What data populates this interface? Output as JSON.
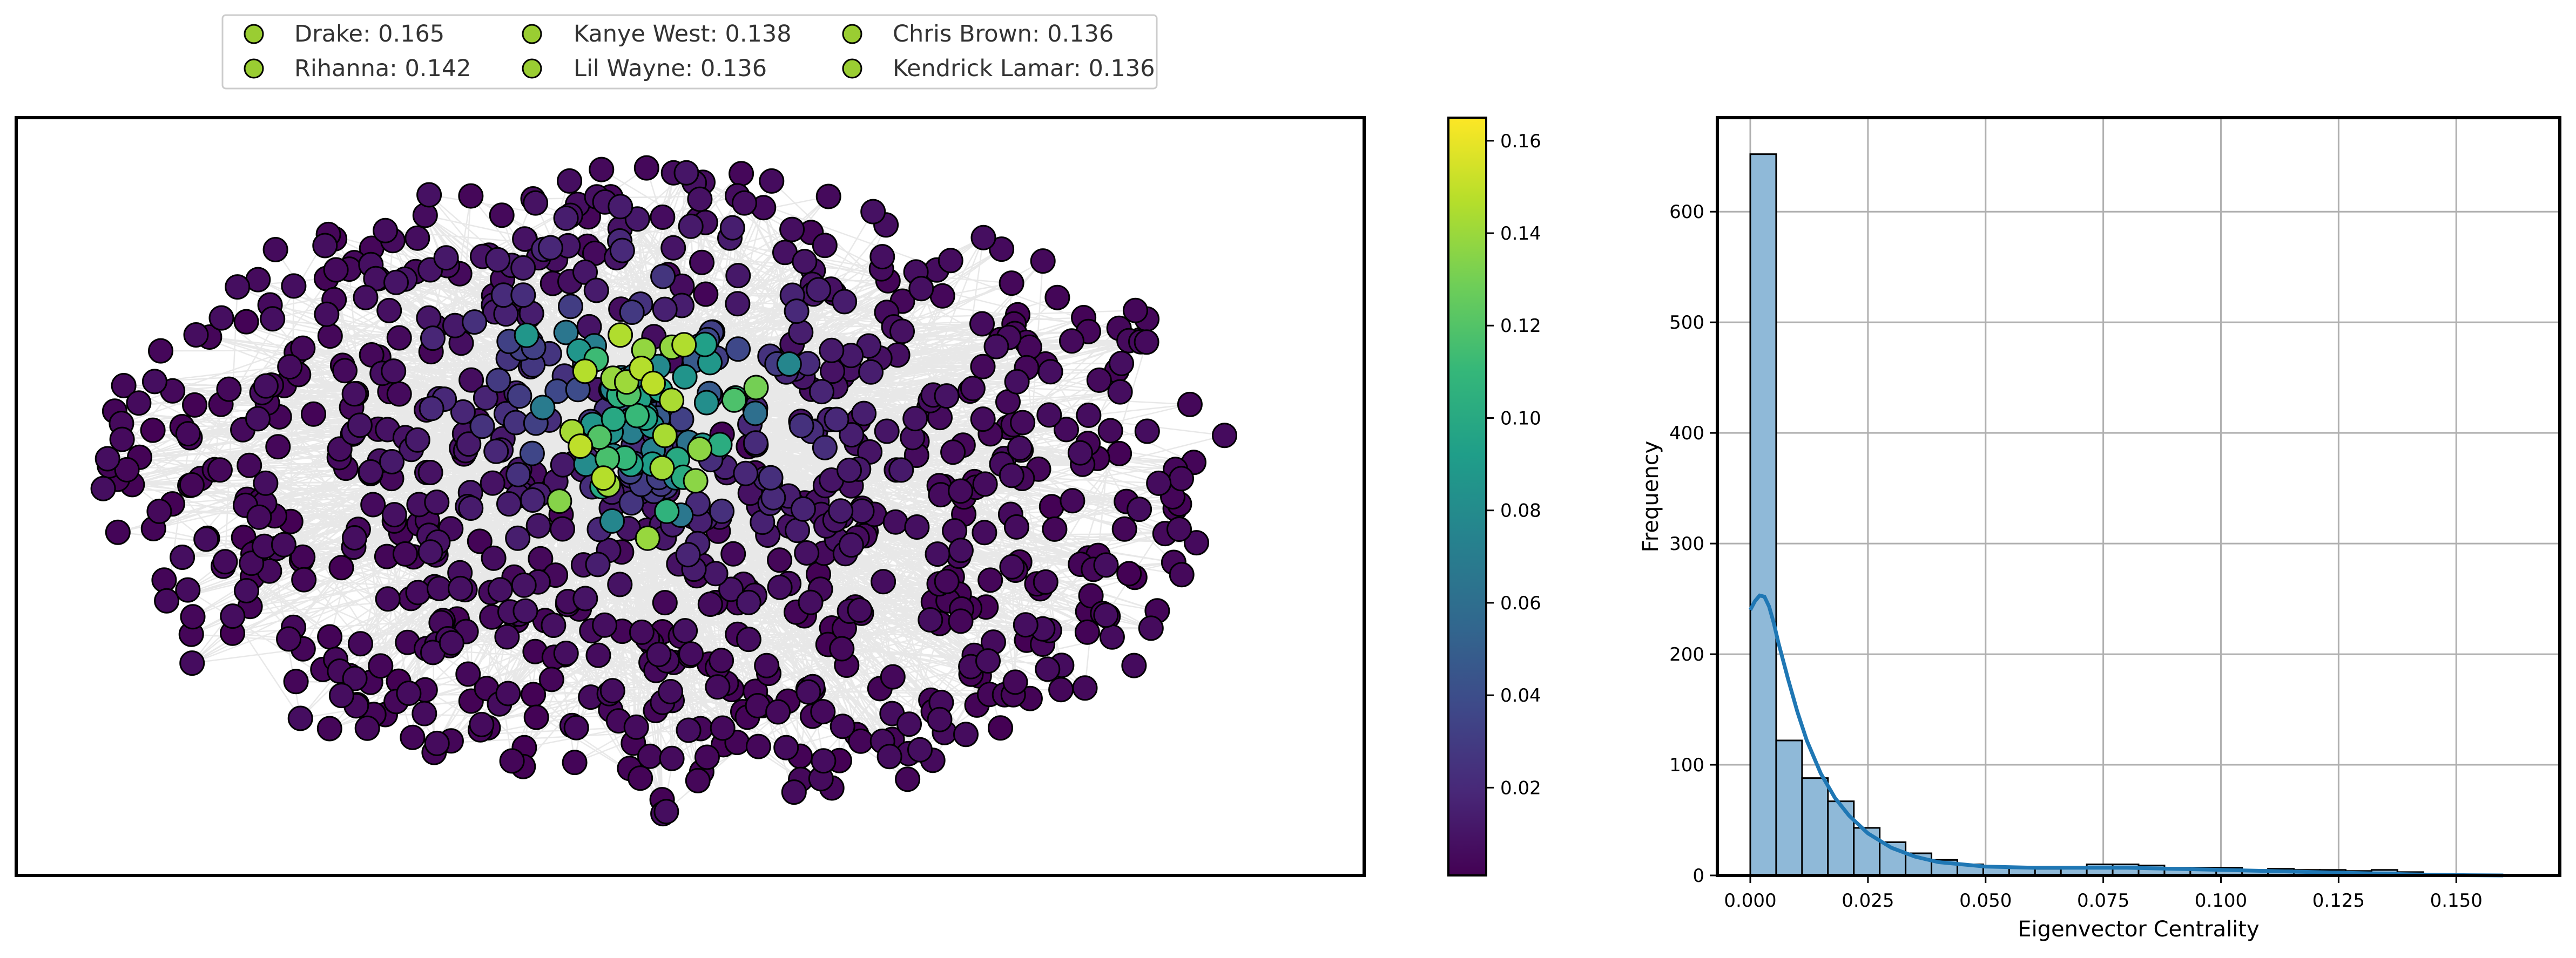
{
  "colors": {
    "viridis": [
      "#440154",
      "#482878",
      "#3e4989",
      "#31688e",
      "#26828e",
      "#1f9e89",
      "#35b779",
      "#6ece58",
      "#b5de2b",
      "#fde725"
    ],
    "histogram_fill": "#8fb9d8",
    "kde_line": "#1f77b4",
    "legend_marker": "#9acd32",
    "grid": "#b0b0b0",
    "edge": "#000000"
  },
  "legend": {
    "entries": [
      {
        "label": "Drake: 0.165"
      },
      {
        "label": "Kanye West: 0.138"
      },
      {
        "label": "Chris Brown: 0.136"
      },
      {
        "label": "Rihanna: 0.142"
      },
      {
        "label": "Lil Wayne: 0.136"
      },
      {
        "label": "Kendrick Lamar: 0.136"
      }
    ]
  },
  "chart_data": [
    {
      "type": "network",
      "node_color_metric": "eigenvector centrality",
      "colormap": "viridis",
      "colorbar": {
        "range": [
          0.001,
          0.165
        ],
        "ticks": [
          0.02,
          0.04,
          0.06,
          0.08,
          0.1,
          0.12,
          0.14,
          0.16
        ],
        "tick_labels": [
          "0.02",
          "0.04",
          "0.06",
          "0.08",
          "0.10",
          "0.12",
          "0.14",
          "0.16"
        ]
      },
      "top_nodes": [
        {
          "name": "Drake",
          "value": 0.165
        },
        {
          "name": "Rihanna",
          "value": 0.142
        },
        {
          "name": "Kanye West",
          "value": 0.138
        },
        {
          "name": "Lil Wayne",
          "value": 0.136
        },
        {
          "name": "Chris Brown",
          "value": 0.136
        },
        {
          "name": "Kendrick Lamar",
          "value": 0.136
        }
      ]
    },
    {
      "type": "bar",
      "subtype": "histogram",
      "xlabel": "Eigenvector Centrality",
      "ylabel": "Frequency",
      "xlim": [
        -0.007,
        0.172
      ],
      "ylim": [
        0,
        685
      ],
      "x_ticks": [
        0.0,
        0.025,
        0.05,
        0.075,
        0.1,
        0.125,
        0.15
      ],
      "x_tick_labels": [
        "0.000",
        "0.025",
        "0.050",
        "0.075",
        "0.100",
        "0.125",
        "0.150"
      ],
      "y_ticks": [
        0,
        100,
        200,
        300,
        400,
        500,
        600
      ],
      "y_tick_labels": [
        "0",
        "100",
        "200",
        "300",
        "400",
        "500",
        "600"
      ],
      "grid": true,
      "bin_start": 0.0,
      "bin_width": 0.0055,
      "counts": [
        652,
        122,
        88,
        67,
        43,
        30,
        20,
        14,
        10,
        8,
        7,
        6,
        7,
        10,
        10,
        9,
        7,
        7,
        7,
        5,
        6,
        5,
        5,
        4,
        5,
        3,
        0,
        0,
        0,
        0
      ],
      "kde": {
        "x": [
          0.0,
          0.001,
          0.002,
          0.003,
          0.004,
          0.005,
          0.006,
          0.008,
          0.01,
          0.012,
          0.015,
          0.018,
          0.021,
          0.025,
          0.03,
          0.035,
          0.04,
          0.05,
          0.06,
          0.07,
          0.08,
          0.09,
          0.1,
          0.11,
          0.12,
          0.13,
          0.14,
          0.15,
          0.16
        ],
        "y": [
          240,
          248,
          253,
          252,
          243,
          228,
          210,
          178,
          148,
          122,
          92,
          70,
          54,
          38,
          25,
          17,
          12,
          8,
          7,
          7,
          7,
          6,
          5,
          4,
          3,
          2,
          1,
          0.3,
          0
        ]
      }
    }
  ]
}
